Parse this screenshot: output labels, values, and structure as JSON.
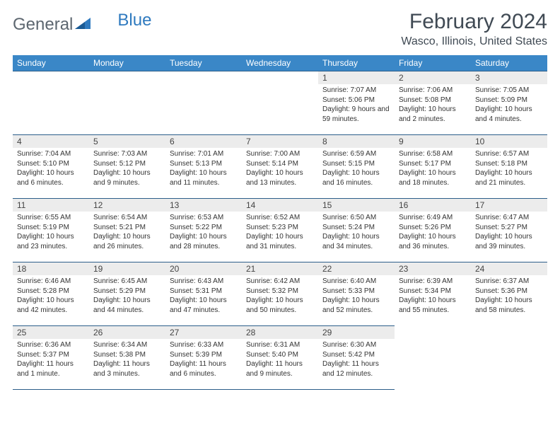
{
  "brand": {
    "word1": "General",
    "word2": "Blue"
  },
  "colors": {
    "header_bg": "#3a87c7",
    "rule": "#2c5e8a",
    "daynum_bg": "#ececec",
    "text": "#333333",
    "title": "#404a54",
    "logo_gray": "#5d6770",
    "logo_blue": "#2f7abf"
  },
  "title": "February 2024",
  "location": "Wasco, Illinois, United States",
  "day_headers": [
    "Sunday",
    "Monday",
    "Tuesday",
    "Wednesday",
    "Thursday",
    "Friday",
    "Saturday"
  ],
  "weeks": [
    [
      null,
      null,
      null,
      null,
      {
        "n": "1",
        "sr": "Sunrise: 7:07 AM",
        "ss": "Sunset: 5:06 PM",
        "dl": "Daylight: 9 hours and 59 minutes."
      },
      {
        "n": "2",
        "sr": "Sunrise: 7:06 AM",
        "ss": "Sunset: 5:08 PM",
        "dl": "Daylight: 10 hours and 2 minutes."
      },
      {
        "n": "3",
        "sr": "Sunrise: 7:05 AM",
        "ss": "Sunset: 5:09 PM",
        "dl": "Daylight: 10 hours and 4 minutes."
      }
    ],
    [
      {
        "n": "4",
        "sr": "Sunrise: 7:04 AM",
        "ss": "Sunset: 5:10 PM",
        "dl": "Daylight: 10 hours and 6 minutes."
      },
      {
        "n": "5",
        "sr": "Sunrise: 7:03 AM",
        "ss": "Sunset: 5:12 PM",
        "dl": "Daylight: 10 hours and 9 minutes."
      },
      {
        "n": "6",
        "sr": "Sunrise: 7:01 AM",
        "ss": "Sunset: 5:13 PM",
        "dl": "Daylight: 10 hours and 11 minutes."
      },
      {
        "n": "7",
        "sr": "Sunrise: 7:00 AM",
        "ss": "Sunset: 5:14 PM",
        "dl": "Daylight: 10 hours and 13 minutes."
      },
      {
        "n": "8",
        "sr": "Sunrise: 6:59 AM",
        "ss": "Sunset: 5:15 PM",
        "dl": "Daylight: 10 hours and 16 minutes."
      },
      {
        "n": "9",
        "sr": "Sunrise: 6:58 AM",
        "ss": "Sunset: 5:17 PM",
        "dl": "Daylight: 10 hours and 18 minutes."
      },
      {
        "n": "10",
        "sr": "Sunrise: 6:57 AM",
        "ss": "Sunset: 5:18 PM",
        "dl": "Daylight: 10 hours and 21 minutes."
      }
    ],
    [
      {
        "n": "11",
        "sr": "Sunrise: 6:55 AM",
        "ss": "Sunset: 5:19 PM",
        "dl": "Daylight: 10 hours and 23 minutes."
      },
      {
        "n": "12",
        "sr": "Sunrise: 6:54 AM",
        "ss": "Sunset: 5:21 PM",
        "dl": "Daylight: 10 hours and 26 minutes."
      },
      {
        "n": "13",
        "sr": "Sunrise: 6:53 AM",
        "ss": "Sunset: 5:22 PM",
        "dl": "Daylight: 10 hours and 28 minutes."
      },
      {
        "n": "14",
        "sr": "Sunrise: 6:52 AM",
        "ss": "Sunset: 5:23 PM",
        "dl": "Daylight: 10 hours and 31 minutes."
      },
      {
        "n": "15",
        "sr": "Sunrise: 6:50 AM",
        "ss": "Sunset: 5:24 PM",
        "dl": "Daylight: 10 hours and 34 minutes."
      },
      {
        "n": "16",
        "sr": "Sunrise: 6:49 AM",
        "ss": "Sunset: 5:26 PM",
        "dl": "Daylight: 10 hours and 36 minutes."
      },
      {
        "n": "17",
        "sr": "Sunrise: 6:47 AM",
        "ss": "Sunset: 5:27 PM",
        "dl": "Daylight: 10 hours and 39 minutes."
      }
    ],
    [
      {
        "n": "18",
        "sr": "Sunrise: 6:46 AM",
        "ss": "Sunset: 5:28 PM",
        "dl": "Daylight: 10 hours and 42 minutes."
      },
      {
        "n": "19",
        "sr": "Sunrise: 6:45 AM",
        "ss": "Sunset: 5:29 PM",
        "dl": "Daylight: 10 hours and 44 minutes."
      },
      {
        "n": "20",
        "sr": "Sunrise: 6:43 AM",
        "ss": "Sunset: 5:31 PM",
        "dl": "Daylight: 10 hours and 47 minutes."
      },
      {
        "n": "21",
        "sr": "Sunrise: 6:42 AM",
        "ss": "Sunset: 5:32 PM",
        "dl": "Daylight: 10 hours and 50 minutes."
      },
      {
        "n": "22",
        "sr": "Sunrise: 6:40 AM",
        "ss": "Sunset: 5:33 PM",
        "dl": "Daylight: 10 hours and 52 minutes."
      },
      {
        "n": "23",
        "sr": "Sunrise: 6:39 AM",
        "ss": "Sunset: 5:34 PM",
        "dl": "Daylight: 10 hours and 55 minutes."
      },
      {
        "n": "24",
        "sr": "Sunrise: 6:37 AM",
        "ss": "Sunset: 5:36 PM",
        "dl": "Daylight: 10 hours and 58 minutes."
      }
    ],
    [
      {
        "n": "25",
        "sr": "Sunrise: 6:36 AM",
        "ss": "Sunset: 5:37 PM",
        "dl": "Daylight: 11 hours and 1 minute."
      },
      {
        "n": "26",
        "sr": "Sunrise: 6:34 AM",
        "ss": "Sunset: 5:38 PM",
        "dl": "Daylight: 11 hours and 3 minutes."
      },
      {
        "n": "27",
        "sr": "Sunrise: 6:33 AM",
        "ss": "Sunset: 5:39 PM",
        "dl": "Daylight: 11 hours and 6 minutes."
      },
      {
        "n": "28",
        "sr": "Sunrise: 6:31 AM",
        "ss": "Sunset: 5:40 PM",
        "dl": "Daylight: 11 hours and 9 minutes."
      },
      {
        "n": "29",
        "sr": "Sunrise: 6:30 AM",
        "ss": "Sunset: 5:42 PM",
        "dl": "Daylight: 11 hours and 12 minutes."
      },
      null,
      null
    ]
  ]
}
